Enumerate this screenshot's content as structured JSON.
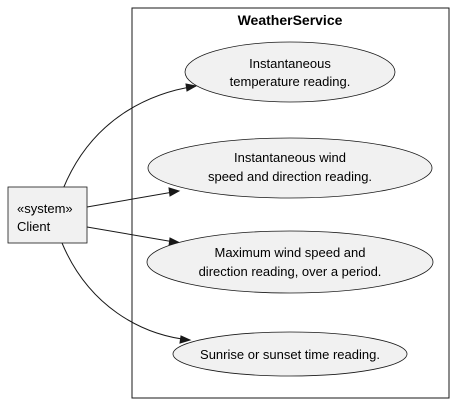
{
  "system": {
    "title": "WeatherService"
  },
  "actor": {
    "stereotype": "«system»",
    "name": "Client"
  },
  "use_cases": [
    {
      "id": "temperature",
      "lines": [
        "Instantaneous",
        "temperature reading."
      ]
    },
    {
      "id": "wind-instant",
      "lines": [
        "Instantaneous wind",
        "speed and direction reading."
      ]
    },
    {
      "id": "wind-max",
      "lines": [
        "Maximum wind speed and",
        "direction reading, over a period."
      ]
    },
    {
      "id": "sun-times",
      "lines": [
        "Sunrise or sunset time reading."
      ]
    }
  ],
  "colors": {
    "shape_fill": "#f1f1f1",
    "stroke": "#181818",
    "background": "#ffffff"
  }
}
